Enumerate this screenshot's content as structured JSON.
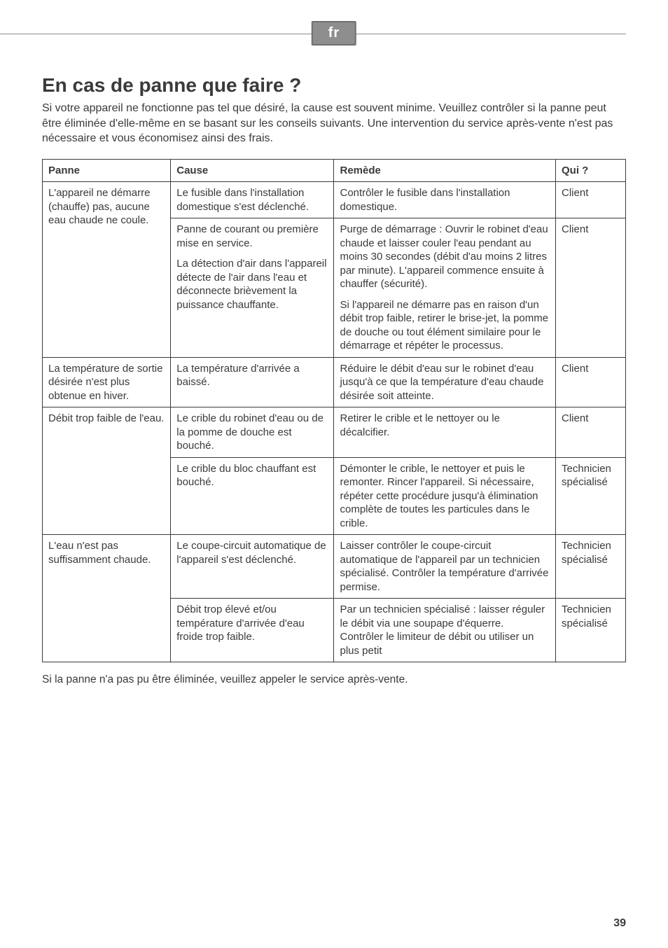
{
  "lang_badge": "fr",
  "title": "En cas de panne que faire ?",
  "intro": "Si votre appareil ne fonctionne pas tel que désiré, la cause est souvent minime. Veuillez contrôler si la panne peut être éliminée d'elle-même en se basant sur les conseils suivants. Une intervention du service après-vente n'est pas nécessaire et vous économisez ainsi des frais.",
  "columns": {
    "panne": "Panne",
    "cause": "Cause",
    "remede": "Remède",
    "qui": "Qui ?"
  },
  "rows": {
    "r1": {
      "panne": "L'appareil ne démarre (chauffe) pas, aucune eau chaude ne coule.",
      "cause": "Le fusible dans l'installation domestique s'est déclenché.",
      "remede": "Contrôler le fusible dans l'installation domestique.",
      "qui": "Client"
    },
    "r2": {
      "cause_a": "Panne de courant ou première mise en service.",
      "cause_b": "La détection d'air dans l'appareil détecte de l'air dans l'eau et déconnecte brièvement la puissance chauffante.",
      "remede_a": "Purge de démarrage :\nOuvrir le robinet d'eau chaude et laisser couler l'eau pendant au moins 30 secondes (débit d'au moins 2 litres par minute). L'appareil commence ensuite à chauffer (sécurité).",
      "remede_b": "Si l'appareil ne démarre pas en raison d'un débit trop faible, retirer le brise-jet, la pomme de douche ou tout élément similaire pour le démarrage et répéter le processus.",
      "qui": "Client"
    },
    "r3": {
      "panne": "La température de sortie désirée n'est plus obtenue en hiver.",
      "cause": "La température d'arrivée a baissé.",
      "remede": "Réduire le débit d'eau sur le robinet d'eau jusqu'à ce que la température d'eau chaude désirée soit atteinte.",
      "qui": "Client"
    },
    "r4": {
      "panne": "Débit trop faible de l'eau.",
      "cause": "Le crible du robinet d'eau ou de la pomme de douche est bouché.",
      "remede": "Retirer le crible et le nettoyer ou le décalcifier.",
      "qui": "Client"
    },
    "r5": {
      "cause": "Le crible du bloc chauffant est bouché.",
      "remede": "Démonter le crible, le nettoyer et puis le remonter. Rincer l'appareil. Si nécessaire, répéter cette procédure jusqu'à élimination complète de toutes les particules dans le crible.",
      "qui": "Technicien spécialisé"
    },
    "r6": {
      "panne": "L'eau n'est pas suffisamment chaude.",
      "cause": "Le coupe-circuit automatique de l'appareil s'est déclenché.",
      "remede": "Laisser contrôler le coupe-circuit automatique de l'appareil par un technicien spécialisé. Contrôler la température d'arrivée permise.",
      "qui": "Technicien spécialisé"
    },
    "r7": {
      "cause": "Débit trop élevé et/ou température d'arrivée d'eau froide trop faible.",
      "remede": "Par un technicien spécialisé : laisser réguler le débit via une soupape d'équerre.\nContrôler le limiteur de débit ou utiliser un plus petit",
      "qui": "Technicien spécialisé"
    }
  },
  "footer_note": "Si la panne n'a pas pu être éliminée, veuillez appeler le service après-vente.",
  "page_number": "39"
}
